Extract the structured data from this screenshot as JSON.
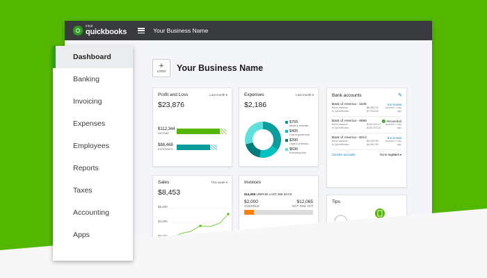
{
  "topbar": {
    "logo_small": "intuit",
    "logo_name": "quickbooks",
    "business_name": "Your Business Name"
  },
  "company": {
    "logo_plus": "+",
    "logo_label": "LOGO",
    "name": "Your Business Name"
  },
  "colors": {
    "brand_green": "#53b700",
    "bar_green": "#53b700",
    "bar_teal": "#0d9c9c",
    "link_blue": "#0077c5",
    "orange": "#ff8000"
  },
  "profit_loss": {
    "title": "Profit and Loss",
    "period": "Last month",
    "net": "$23,876",
    "income": {
      "amount": "$112,344",
      "label": "INCOME"
    },
    "expenses": {
      "amount": "$88,468",
      "label": "EXPENSES"
    }
  },
  "expenses_card": {
    "title": "Expenses",
    "period": "Last month",
    "total": "$2,186",
    "categories": [
      {
        "amount": "$755",
        "label": "Meals & entertain...",
        "color": "#0d9c9c"
      },
      {
        "amount": "$405",
        "label": "Cost of goods sold",
        "color": "#00c1bf"
      },
      {
        "amount": "$390",
        "label": "Legal & professio...",
        "color": "#007b7b"
      },
      {
        "amount": "$636",
        "label": "Everything else",
        "color": "#5fe0d9"
      }
    ]
  },
  "chart_data": {
    "type": "pie",
    "title": "Expenses",
    "categories": [
      "Meals & entertain...",
      "Cost of goods sold",
      "Legal & professio...",
      "Everything else"
    ],
    "values": [
      755,
      405,
      390,
      636
    ]
  },
  "bank_accounts": {
    "title": "Bank accounts",
    "entries": [
      {
        "name": "Bank of America - 1108",
        "bank_balance_label": "Bank balance",
        "bank_balance": "$8,680.15",
        "qb_label": "In QuickBooks",
        "qb_balance": "$7,253.64",
        "status": "3 to review",
        "updated": "Updated 1 day ago",
        "reconciled": false
      },
      {
        "name": "Bank of America - 8888",
        "bank_balance_label": "Bank balance",
        "bank_balance": "$110,253.11",
        "qb_label": "In QuickBooks",
        "qb_balance": "$110,253.11",
        "status": "Reconciled",
        "updated": "Updated 1 day ago",
        "reconciled": true
      },
      {
        "name": "Bank of America - 8214",
        "bank_balance_label": "Bank balance",
        "bank_balance": "$5,030.56",
        "qb_label": "In QuickBooks",
        "qb_balance": "$4,987.83",
        "status": "8 to review",
        "updated": "Updated 1 day ago",
        "reconciled": false
      }
    ],
    "connect_label": "Connect accounts",
    "register_label": "Go to registers"
  },
  "sales": {
    "title": "Sales",
    "period": "This week",
    "total": "$8,453",
    "ticks": [
      "$6,000",
      "$4,000",
      "$2,000"
    ]
  },
  "invoices": {
    "title": "Invoices",
    "unpaid_amount": "$14,065",
    "unpaid_label": "UNPAID LAST 365 DAYS",
    "overdue": "$2,000",
    "overdue_label": "OVERDUE",
    "not_due": "$12,065",
    "not_due_label": "NOT DUE YET",
    "overdue_fraction": 0.14
  },
  "tips": {
    "title": "Tips"
  },
  "sidebar": {
    "items": [
      {
        "label": "Dashboard",
        "active": true
      },
      {
        "label": "Banking"
      },
      {
        "label": "Invoicing"
      },
      {
        "label": "Expenses"
      },
      {
        "label": "Employees"
      },
      {
        "label": "Reports"
      },
      {
        "label": "Taxes"
      },
      {
        "label": "Accounting"
      },
      {
        "label": "Apps"
      }
    ]
  }
}
